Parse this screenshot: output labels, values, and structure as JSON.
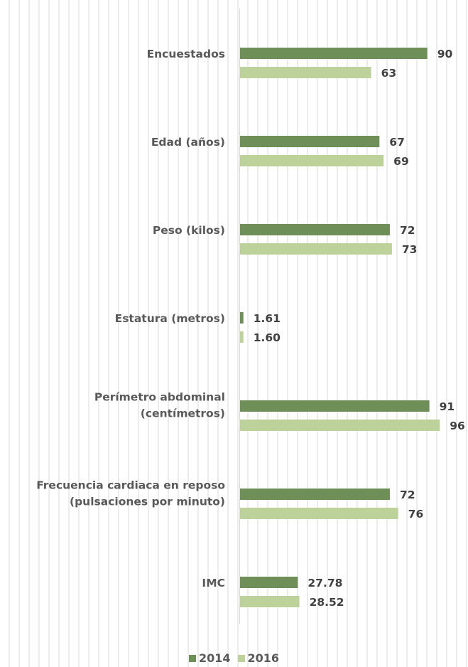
{
  "chart_data": {
    "type": "bar",
    "orientation": "horizontal",
    "categories": [
      [
        "Encuestados"
      ],
      [
        "Edad (años)"
      ],
      [
        "Peso (kilos)"
      ],
      [
        "Estatura (metros)"
      ],
      [
        "Perímetro abdominal",
        "(centímetros)"
      ],
      [
        "Frecuencia cardiaca en reposo",
        "(pulsaciones por minuto)"
      ],
      [
        "IMC"
      ]
    ],
    "series": [
      {
        "name": "2014",
        "color": "#6e8f58",
        "values": [
          90,
          67,
          72,
          1.61,
          91,
          72,
          27.78
        ],
        "labels": [
          "90",
          "67",
          "72",
          "1.61",
          "91",
          "72",
          "27.78"
        ]
      },
      {
        "name": "2016",
        "color": "#bdd19a",
        "values": [
          63,
          69,
          73,
          1.6,
          96,
          76,
          28.52
        ],
        "labels": [
          "63",
          "69",
          "73",
          "1.60",
          "96",
          "76",
          "28.52"
        ]
      }
    ],
    "xlim": [
      0,
      100
    ],
    "grid": false,
    "legend": "bottom"
  }
}
